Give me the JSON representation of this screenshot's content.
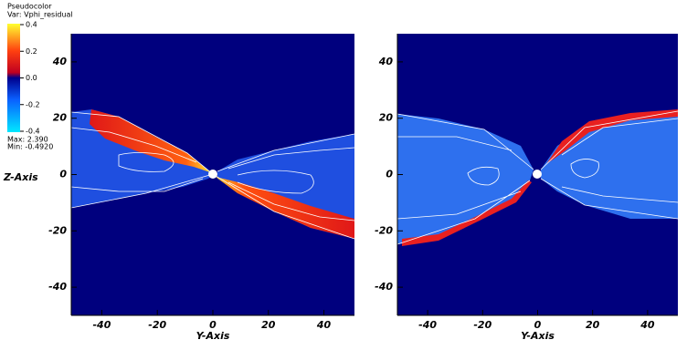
{
  "legend": {
    "title": "Pseudocolor",
    "variable": "Var: Vphi_residual",
    "ticks": [
      0.4,
      0.2,
      {
        "value": 0,
        "label": "0.0"
      },
      -0.2,
      -0.4
    ],
    "max": "Max:  2.390",
    "min": "Min: -0.4920"
  },
  "chart_data": [
    {
      "type": "pseudocolor",
      "x_label": "Y-Axis",
      "y_label": "Z-Axis",
      "xlim": [
        -51,
        51
      ],
      "ylim": [
        -50,
        50
      ],
      "xticks": [
        -40,
        -20,
        0,
        20,
        40
      ],
      "yticks": [
        -40,
        -20,
        0,
        20,
        40
      ]
    },
    {
      "type": "pseudocolor",
      "x_label": "Y-Axis",
      "xlim": [
        -51,
        51
      ],
      "ylim": [
        -50,
        50
      ],
      "xticks": [
        -40,
        -20,
        0,
        20,
        40
      ],
      "yticks": [
        -40,
        -20,
        0,
        20,
        40
      ]
    }
  ]
}
